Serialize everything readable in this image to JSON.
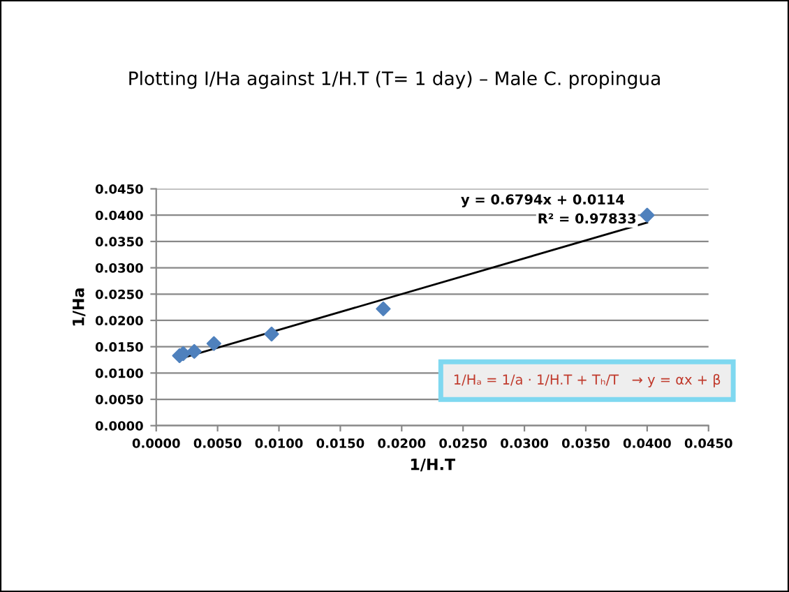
{
  "chart_data": {
    "type": "scatter",
    "title": "Plotting I/Ha against 1/H.T (T= 1 day) – Male C. propingua",
    "xlabel": "1/H.T",
    "ylabel": "1/Ha",
    "series": [
      {
        "color": "#4f81bd",
        "marker": "diamond",
        "x": [
          0.0019,
          0.0022,
          0.0031,
          0.0047,
          0.0094,
          0.0185,
          0.04
        ],
        "values": [
          0.0133,
          0.0137,
          0.0141,
          0.0156,
          0.0174,
          0.0222,
          0.04
        ]
      },
      {
        "type": "line",
        "color": "#000000",
        "marker": "none",
        "x": [
          0.0019,
          0.04
        ],
        "values": [
          0.0127,
          0.0386
        ]
      }
    ],
    "annotations": [
      "y = 0.6794x + 0.0114",
      "R² = 0.97833",
      "1/Hₐ = 1/a · 1/H.T + Tₕ/T   → y = αx + β"
    ],
    "xlim": [
      0,
      0.045
    ],
    "ylim": [
      0,
      0.045
    ],
    "xticks": [
      {
        "value": 0,
        "label": "0.0000"
      },
      {
        "value": 0.005,
        "label": "0.0050"
      },
      {
        "value": 0.01,
        "label": "0.0100"
      },
      {
        "value": 0.015,
        "label": "0.0150"
      },
      {
        "value": 0.02,
        "label": "0.0200"
      },
      {
        "value": 0.025,
        "label": "0.0250"
      },
      {
        "value": 0.03,
        "label": "0.0300"
      },
      {
        "value": 0.035,
        "label": "0.0350"
      },
      {
        "value": 0.04,
        "label": "0.0400"
      },
      {
        "value": 0.045,
        "label": "0.0450"
      }
    ],
    "yticks": [
      {
        "value": 0,
        "label": "0.0000"
      },
      {
        "value": 0.005,
        "label": "0.0050"
      },
      {
        "value": 0.01,
        "label": "0.0100"
      },
      {
        "value": 0.015,
        "label": "0.0150"
      },
      {
        "value": 0.02,
        "label": "0.0200"
      },
      {
        "value": 0.025,
        "label": "0.0250"
      },
      {
        "value": 0.03,
        "label": "0.0300"
      },
      {
        "value": 0.035,
        "label": "0.0350"
      },
      {
        "value": 0.04,
        "label": "0.0400"
      },
      {
        "value": 0.045,
        "label": "0.0450"
      }
    ],
    "grid": "y",
    "legend": false
  }
}
